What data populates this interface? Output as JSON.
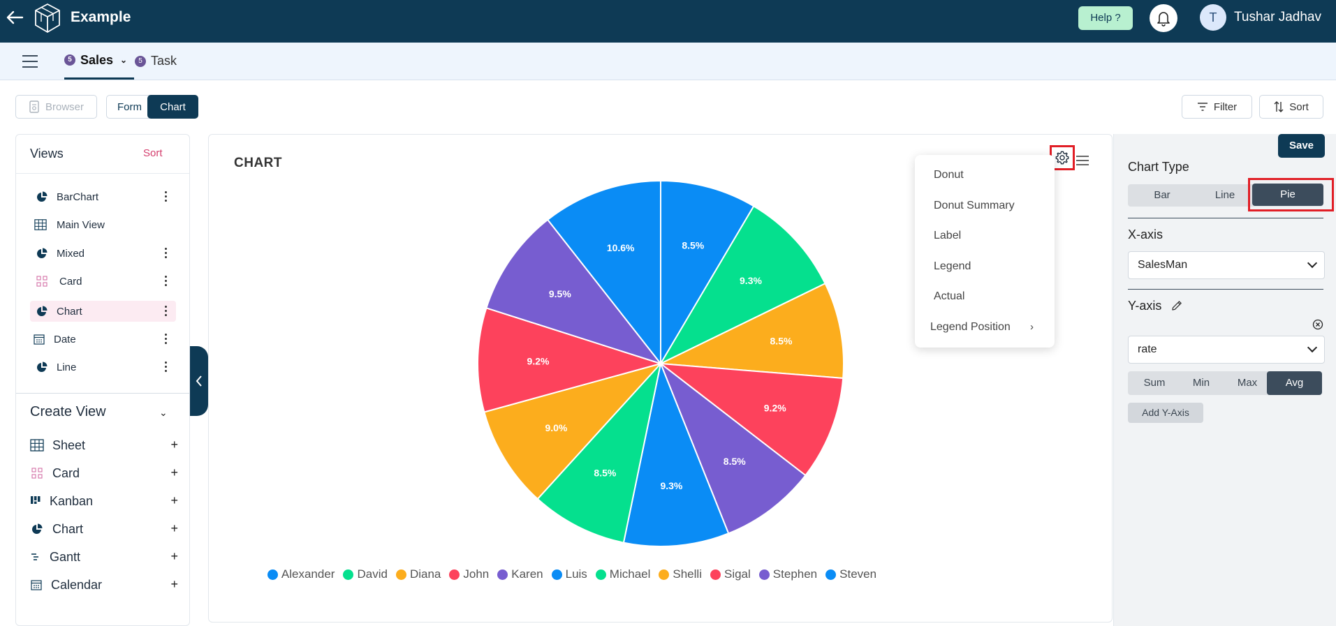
{
  "header": {
    "app_title": "Example",
    "help_label": "Help ?",
    "avatar_initial": "T",
    "user_name": "Tushar Jadhav"
  },
  "tabs": [
    {
      "label": "Sales",
      "count": "5"
    },
    {
      "label": "Task",
      "count": "5"
    }
  ],
  "toolbar": {
    "browser_label": "Browser",
    "form_label": "Form",
    "chart_label": "Chart",
    "filter_label": "Filter",
    "sort_label": "Sort"
  },
  "views": {
    "title": "Views",
    "sort_label": "Sort",
    "items": [
      {
        "label": "BarChart",
        "icon": "pie-icon"
      },
      {
        "label": "Main View",
        "icon": "grid-icon"
      },
      {
        "label": "Mixed",
        "icon": "pie-icon"
      },
      {
        "label": "Card",
        "icon": "card-icon"
      },
      {
        "label": "Chart",
        "icon": "pie-icon"
      },
      {
        "label": "Date",
        "icon": "calendar-icon"
      },
      {
        "label": "Line",
        "icon": "pie-icon"
      }
    ]
  },
  "create_view": {
    "title": "Create View",
    "items": [
      {
        "label": "Sheet",
        "icon": "grid-icon"
      },
      {
        "label": "Card",
        "icon": "card-icon"
      },
      {
        "label": "Kanban",
        "icon": "kanban-icon"
      },
      {
        "label": "Chart",
        "icon": "pie-icon"
      },
      {
        "label": "Gantt",
        "icon": "gantt-icon"
      },
      {
        "label": "Calendar",
        "icon": "calendar-icon"
      }
    ]
  },
  "chart_data": {
    "type": "pie",
    "title": "CHART",
    "labels": [
      "Alexander",
      "David",
      "Diana",
      "John",
      "Karen",
      "Luis",
      "Michael",
      "Shelli",
      "Sigal",
      "Stephen",
      "Steven"
    ],
    "values": [
      8.5,
      9.3,
      8.5,
      9.2,
      8.5,
      9.3,
      8.5,
      9.0,
      9.2,
      9.5,
      10.6
    ],
    "value_labels": [
      "8.5%",
      "9.3%",
      "8.5%",
      "9.2%",
      "8.5%",
      "9.3%",
      "8.5%",
      "9.0%",
      "9.2%",
      "9.5%",
      "10.6%"
    ],
    "colors": [
      "#0a8cf5",
      "#05e08e",
      "#fcad1d",
      "#fd425c",
      "#775dd0",
      "#0a8cf5",
      "#05e08e",
      "#fcad1d",
      "#fd425c",
      "#775dd0",
      "#0a8cf5"
    ],
    "legend_position": "bottom"
  },
  "chart_menu": {
    "items": [
      "Donut",
      "Donut Summary",
      "Label",
      "Legend",
      "Actual"
    ],
    "legend_position_label": "Legend Position"
  },
  "config": {
    "save_label": "Save",
    "chart_type_label": "Chart Type",
    "chart_types": [
      "Bar",
      "Line",
      "Pie"
    ],
    "selected_chart_type": "Pie",
    "x_axis_label": "X-axis",
    "x_axis_value": "SalesMan",
    "y_axis_label": "Y-axis",
    "y_axis_value": "rate",
    "aggregations": [
      "Sum",
      "Min",
      "Max",
      "Avg"
    ],
    "selected_aggregation": "Avg",
    "add_y_axis_label": "Add Y-Axis"
  },
  "colors": {
    "primary": "#0e3a55",
    "help_bg": "#b8f0d0",
    "highlight_red": "#e11e26",
    "sort_pink": "#d43f6e"
  }
}
